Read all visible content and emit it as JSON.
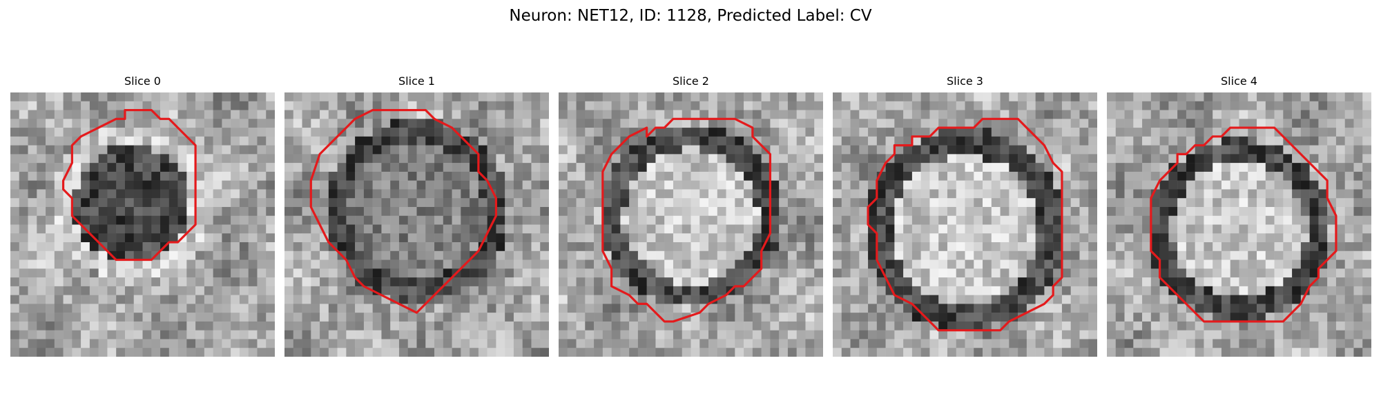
{
  "figure": {
    "title": "Neuron: NET12, ID: 1128, Predicted Label: CV"
  },
  "panels": [
    {
      "title": "Slice 0",
      "seed": 11,
      "blob_center": [
        0.46,
        0.42
      ],
      "blob_radius": 0.26,
      "blob_tone": "dark",
      "ring_tone": "light"
    },
    {
      "title": "Slice 1",
      "seed": 23,
      "blob_center": [
        0.5,
        0.45
      ],
      "blob_radius": 0.3,
      "blob_tone": "mid",
      "ring_tone": "dark"
    },
    {
      "title": "Slice 2",
      "seed": 37,
      "blob_center": [
        0.5,
        0.47
      ],
      "blob_radius": 0.3,
      "blob_tone": "light",
      "ring_tone": "dark"
    },
    {
      "title": "Slice 3",
      "seed": 41,
      "blob_center": [
        0.5,
        0.52
      ],
      "blob_radius": 0.33,
      "blob_tone": "light",
      "ring_tone": "dark"
    },
    {
      "title": "Slice 4",
      "seed": 53,
      "blob_center": [
        0.5,
        0.52
      ],
      "blob_radius": 0.3,
      "blob_tone": "light",
      "ring_tone": "dark"
    }
  ],
  "colors": {
    "contour": "#e41a1c",
    "background": "#ffffff"
  }
}
